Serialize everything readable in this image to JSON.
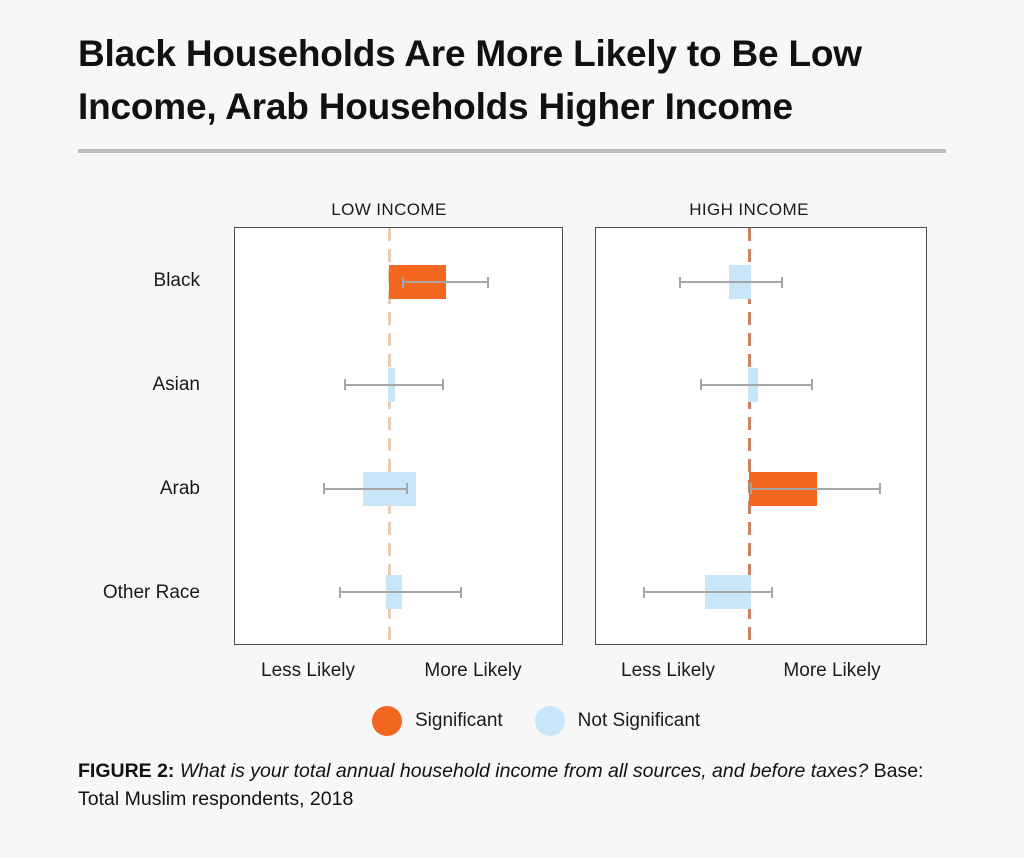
{
  "title": {
    "line1": "Black Households Are More Likely to Be Low",
    "line2": "Income, Arab Households Higher Income"
  },
  "colors": {
    "significant": "#F2661F",
    "not_significant": "#C8E6F7",
    "whisker": "#A6A6A6",
    "panel_border": "#4D4D4D",
    "background": "#F7F7F8",
    "divider": "#BDBDBD",
    "dash_low": "#E8CDB5",
    "dash_high": "#CB8261",
    "text": "#1A1A1A"
  },
  "axis": {
    "less": "Less Likely",
    "more": "More Likely"
  },
  "legend": [
    {
      "label": "Significant",
      "color_key": "significant"
    },
    {
      "label": "Not Significant",
      "color_key": "not_significant"
    }
  ],
  "caption": {
    "figure_label": "FIGURE 2:",
    "separator": " ",
    "question": "What is your total annual household income from all sources, and before taxes?",
    "base": " Base: Total Muslim respondents, 2018"
  },
  "chart_data": {
    "type": "bar",
    "orientation": "horizontal",
    "description": "Regression-style likelihood bars with confidence-interval whiskers; no numeric axis shown. Values are fractions of panel width measured from the central dashed reference line (0 = reference, positive = More Likely).",
    "categories": [
      "Black",
      "Asian",
      "Arab",
      "Other Race"
    ],
    "row_fracs": [
      0.13,
      0.377,
      0.627,
      0.876
    ],
    "x_axis_labels": [
      "Less Likely",
      "More Likely"
    ],
    "legend": [
      "Significant",
      "Not Significant"
    ],
    "panels": [
      {
        "title": "LOW INCOME",
        "dash_frac": 0.471,
        "dash_color": "#E8CDB5",
        "rows": [
          {
            "category": "Black",
            "significant": true,
            "bar": [
              0.0,
              0.173
            ],
            "ci": [
              0.04,
              0.307
            ]
          },
          {
            "category": "Asian",
            "significant": false,
            "bar": [
              -0.003,
              0.018
            ],
            "ci": [
              -0.137,
              0.167
            ]
          },
          {
            "category": "Arab",
            "significant": false,
            "bar": [
              -0.079,
              0.082
            ],
            "ci": [
              -0.201,
              0.058
            ]
          },
          {
            "category": "Other Race",
            "significant": false,
            "bar": [
              -0.009,
              0.04
            ],
            "ci": [
              -0.152,
              0.222
            ]
          }
        ]
      },
      {
        "title": "HIGH INCOME",
        "dash_frac": 0.464,
        "dash_color": "#CB8261",
        "rows": [
          {
            "category": "Black",
            "significant": false,
            "bar": [
              -0.06,
              0.006
            ],
            "ci": [
              -0.214,
              0.102
            ]
          },
          {
            "category": "Asian",
            "significant": false,
            "bar": [
              -0.003,
              0.027
            ],
            "ci": [
              -0.148,
              0.193
            ]
          },
          {
            "category": "Arab",
            "significant": true,
            "bar": [
              0.0,
              0.205
            ],
            "ci": [
              0.003,
              0.4
            ]
          },
          {
            "category": "Other Race",
            "significant": false,
            "bar": [
              -0.133,
              0.006
            ],
            "ci": [
              -0.322,
              0.072
            ]
          }
        ]
      }
    ]
  }
}
